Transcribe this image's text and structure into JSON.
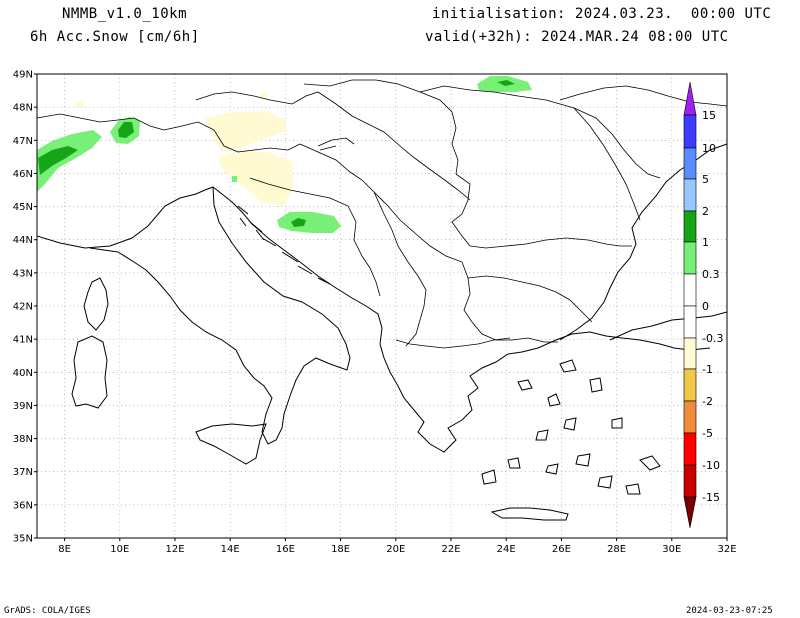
{
  "header": {
    "model": "NMMB_v1.0_10km",
    "field": "6h Acc.Snow [cm/6h]",
    "init": "initialisation: 2024.03.23.  00:00 UTC",
    "valid": "valid(+32h): 2024.MAR.24 08:00 UTC"
  },
  "footer": {
    "credit": "GrADS: COLA/IGES",
    "timestamp": "2024-03-23-07:25"
  },
  "map": {
    "lat_labels": [
      "35N",
      "36N",
      "37N",
      "38N",
      "39N",
      "40N",
      "41N",
      "42N",
      "43N",
      "44N",
      "45N",
      "46N",
      "47N",
      "48N",
      "49N"
    ],
    "lon_labels": [
      "8E",
      "10E",
      "12E",
      "14E",
      "16E",
      "18E",
      "20E",
      "22E",
      "24E",
      "26E",
      "28E",
      "30E",
      "32E"
    ],
    "lat_range": [
      35,
      49
    ],
    "lon_range": [
      7,
      32
    ]
  },
  "colorbar": {
    "labels": [
      "15",
      "10",
      "5",
      "2",
      "1",
      "0.3",
      "0",
      "-0.3",
      "-1",
      "-2",
      "-5",
      "-10",
      "-15"
    ],
    "colors": {
      "purple": "#a020f0",
      "blue": "#3c3cff",
      "mid_blue": "#5a8cff",
      "light_blue": "#96c8ff",
      "dark_green": "#16a516",
      "light_green": "#78f078",
      "white": "#ffffff",
      "pale_yellow": "#fffad2",
      "yellow": "#f0c846",
      "orange": "#f08c3c",
      "red": "#ff0000",
      "dark_red": "#c80000",
      "maroon": "#780000"
    }
  }
}
